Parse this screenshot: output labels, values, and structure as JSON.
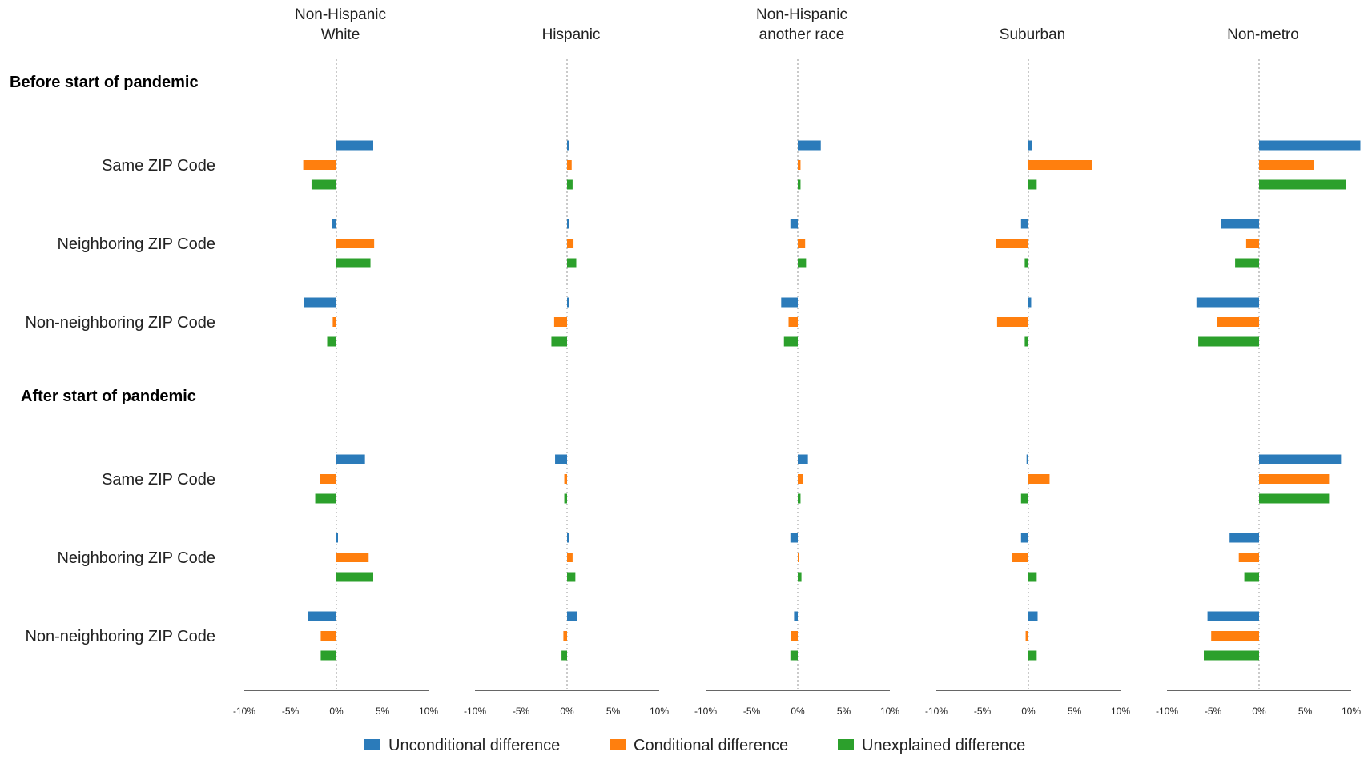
{
  "chart_data": {
    "type": "bar",
    "orientation": "horizontal",
    "panels": [
      {
        "title": [
          "Non-Hispanic",
          "White"
        ]
      },
      {
        "title": [
          "Hispanic"
        ]
      },
      {
        "title": [
          "Non-Hispanic",
          "another race"
        ]
      },
      {
        "title": [
          "Suburban"
        ]
      },
      {
        "title": [
          "Non-metro"
        ]
      }
    ],
    "sections": [
      {
        "title": "Before start of pandemic",
        "rows": [
          "Same ZIP Code",
          "Neighboring ZIP Code",
          "Non-neighboring ZIP Code"
        ]
      },
      {
        "title": "After start of pandemic",
        "rows": [
          "Same ZIP Code",
          "Neighboring ZIP Code",
          "Non-neighboring ZIP Code"
        ]
      }
    ],
    "series": [
      {
        "name": "Unconditional difference",
        "color": "#2b7bba",
        "values": [
          [
            4.0,
            -0.5,
            -3.5,
            3.1,
            0,
            -3.1
          ],
          [
            0.1,
            0.1,
            0.1,
            -1.3,
            0.2,
            1.1
          ],
          [
            2.5,
            -0.8,
            -1.8,
            1.1,
            -0.8,
            -0.4
          ],
          [
            0.4,
            -0.8,
            0.3,
            -0.2,
            -0.8,
            1.0
          ],
          [
            11.0,
            -4.1,
            -6.8,
            8.9,
            -3.2,
            -5.6
          ]
        ]
      },
      {
        "name": "Conditional difference",
        "color": "#ff7f0e",
        "values": [
          [
            -3.6,
            4.1,
            -0.4,
            -1.8,
            3.5,
            -1.7
          ],
          [
            0.5,
            0.7,
            -1.4,
            -0.3,
            0.6,
            -0.4
          ],
          [
            0.3,
            0.8,
            -1.0,
            0.6,
            0.1,
            -0.7
          ],
          [
            6.9,
            -3.5,
            -3.4,
            2.3,
            -1.8,
            -0.3
          ],
          [
            6.0,
            -1.4,
            -4.6,
            7.6,
            -2.2,
            -5.2
          ]
        ]
      },
      {
        "name": "Unexplained difference",
        "color": "#2ca02c",
        "values": [
          [
            -2.7,
            3.7,
            -1.0,
            -2.3,
            4.0,
            -1.7
          ],
          [
            0.6,
            1.0,
            -1.7,
            -0.3,
            0.9,
            -0.6
          ],
          [
            0.3,
            0.9,
            -1.5,
            0.3,
            0.4,
            -0.8
          ],
          [
            0.9,
            -0.4,
            -0.4,
            -0.8,
            0.9,
            0.9
          ],
          [
            9.4,
            -2.6,
            -6.6,
            7.6,
            -1.6,
            -6.0
          ]
        ]
      }
    ],
    "xlim": [
      -10,
      10
    ],
    "xticks": [
      -10,
      -5,
      0,
      5,
      10
    ],
    "xtick_labels": [
      "-10%",
      "-5%",
      "0%",
      "5%",
      "10%"
    ],
    "legend_position": "bottom",
    "grid": false,
    "zero_line": "dotted"
  }
}
